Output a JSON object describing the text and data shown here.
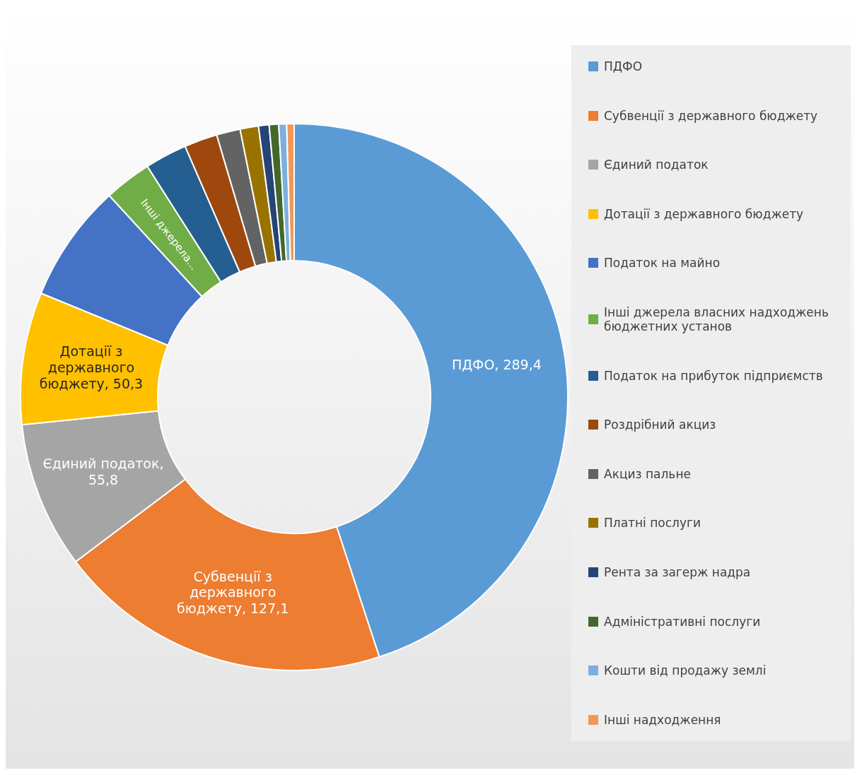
{
  "chart_data": {
    "type": "donut",
    "categories": [
      "ПДФО",
      "Субвенції з державного бюджету",
      "Єдиний податок",
      "Дотації з державного бюджету",
      "Податок на майно",
      "Інші джерела власних надходжень бюджетних установ",
      "Податок на прибуток підприємств",
      "Роздрібний акциз",
      "Акциз пальне",
      "Платні послуги",
      "Рента за загерж надра",
      "Адміністративні послуги",
      "Кошти від продажу землі",
      "Інші надходження"
    ],
    "values": [
      289.4,
      127.1,
      55.8,
      50.3,
      45,
      18,
      16,
      12.6,
      9,
      7,
      4,
      3.6,
      3,
      2.8
    ],
    "colors": [
      "#5b9bd5",
      "#ed7d31",
      "#a5a5a5",
      "#ffc000",
      "#4472c4",
      "#70ad47",
      "#255e91",
      "#9e480e",
      "#636363",
      "#997300",
      "#264478",
      "#43682b",
      "#7cafdd",
      "#f1975a"
    ],
    "value_labels": [
      "ПДФО, 289,4",
      "Субвенції з державного бюджету, 127,1",
      "Єдиний податок, 55,8",
      "Дотації з державного бюджету, 50,3",
      null,
      "Інші джерела...",
      null,
      null,
      null,
      null,
      null,
      null,
      null,
      null
    ],
    "legend": "right"
  }
}
